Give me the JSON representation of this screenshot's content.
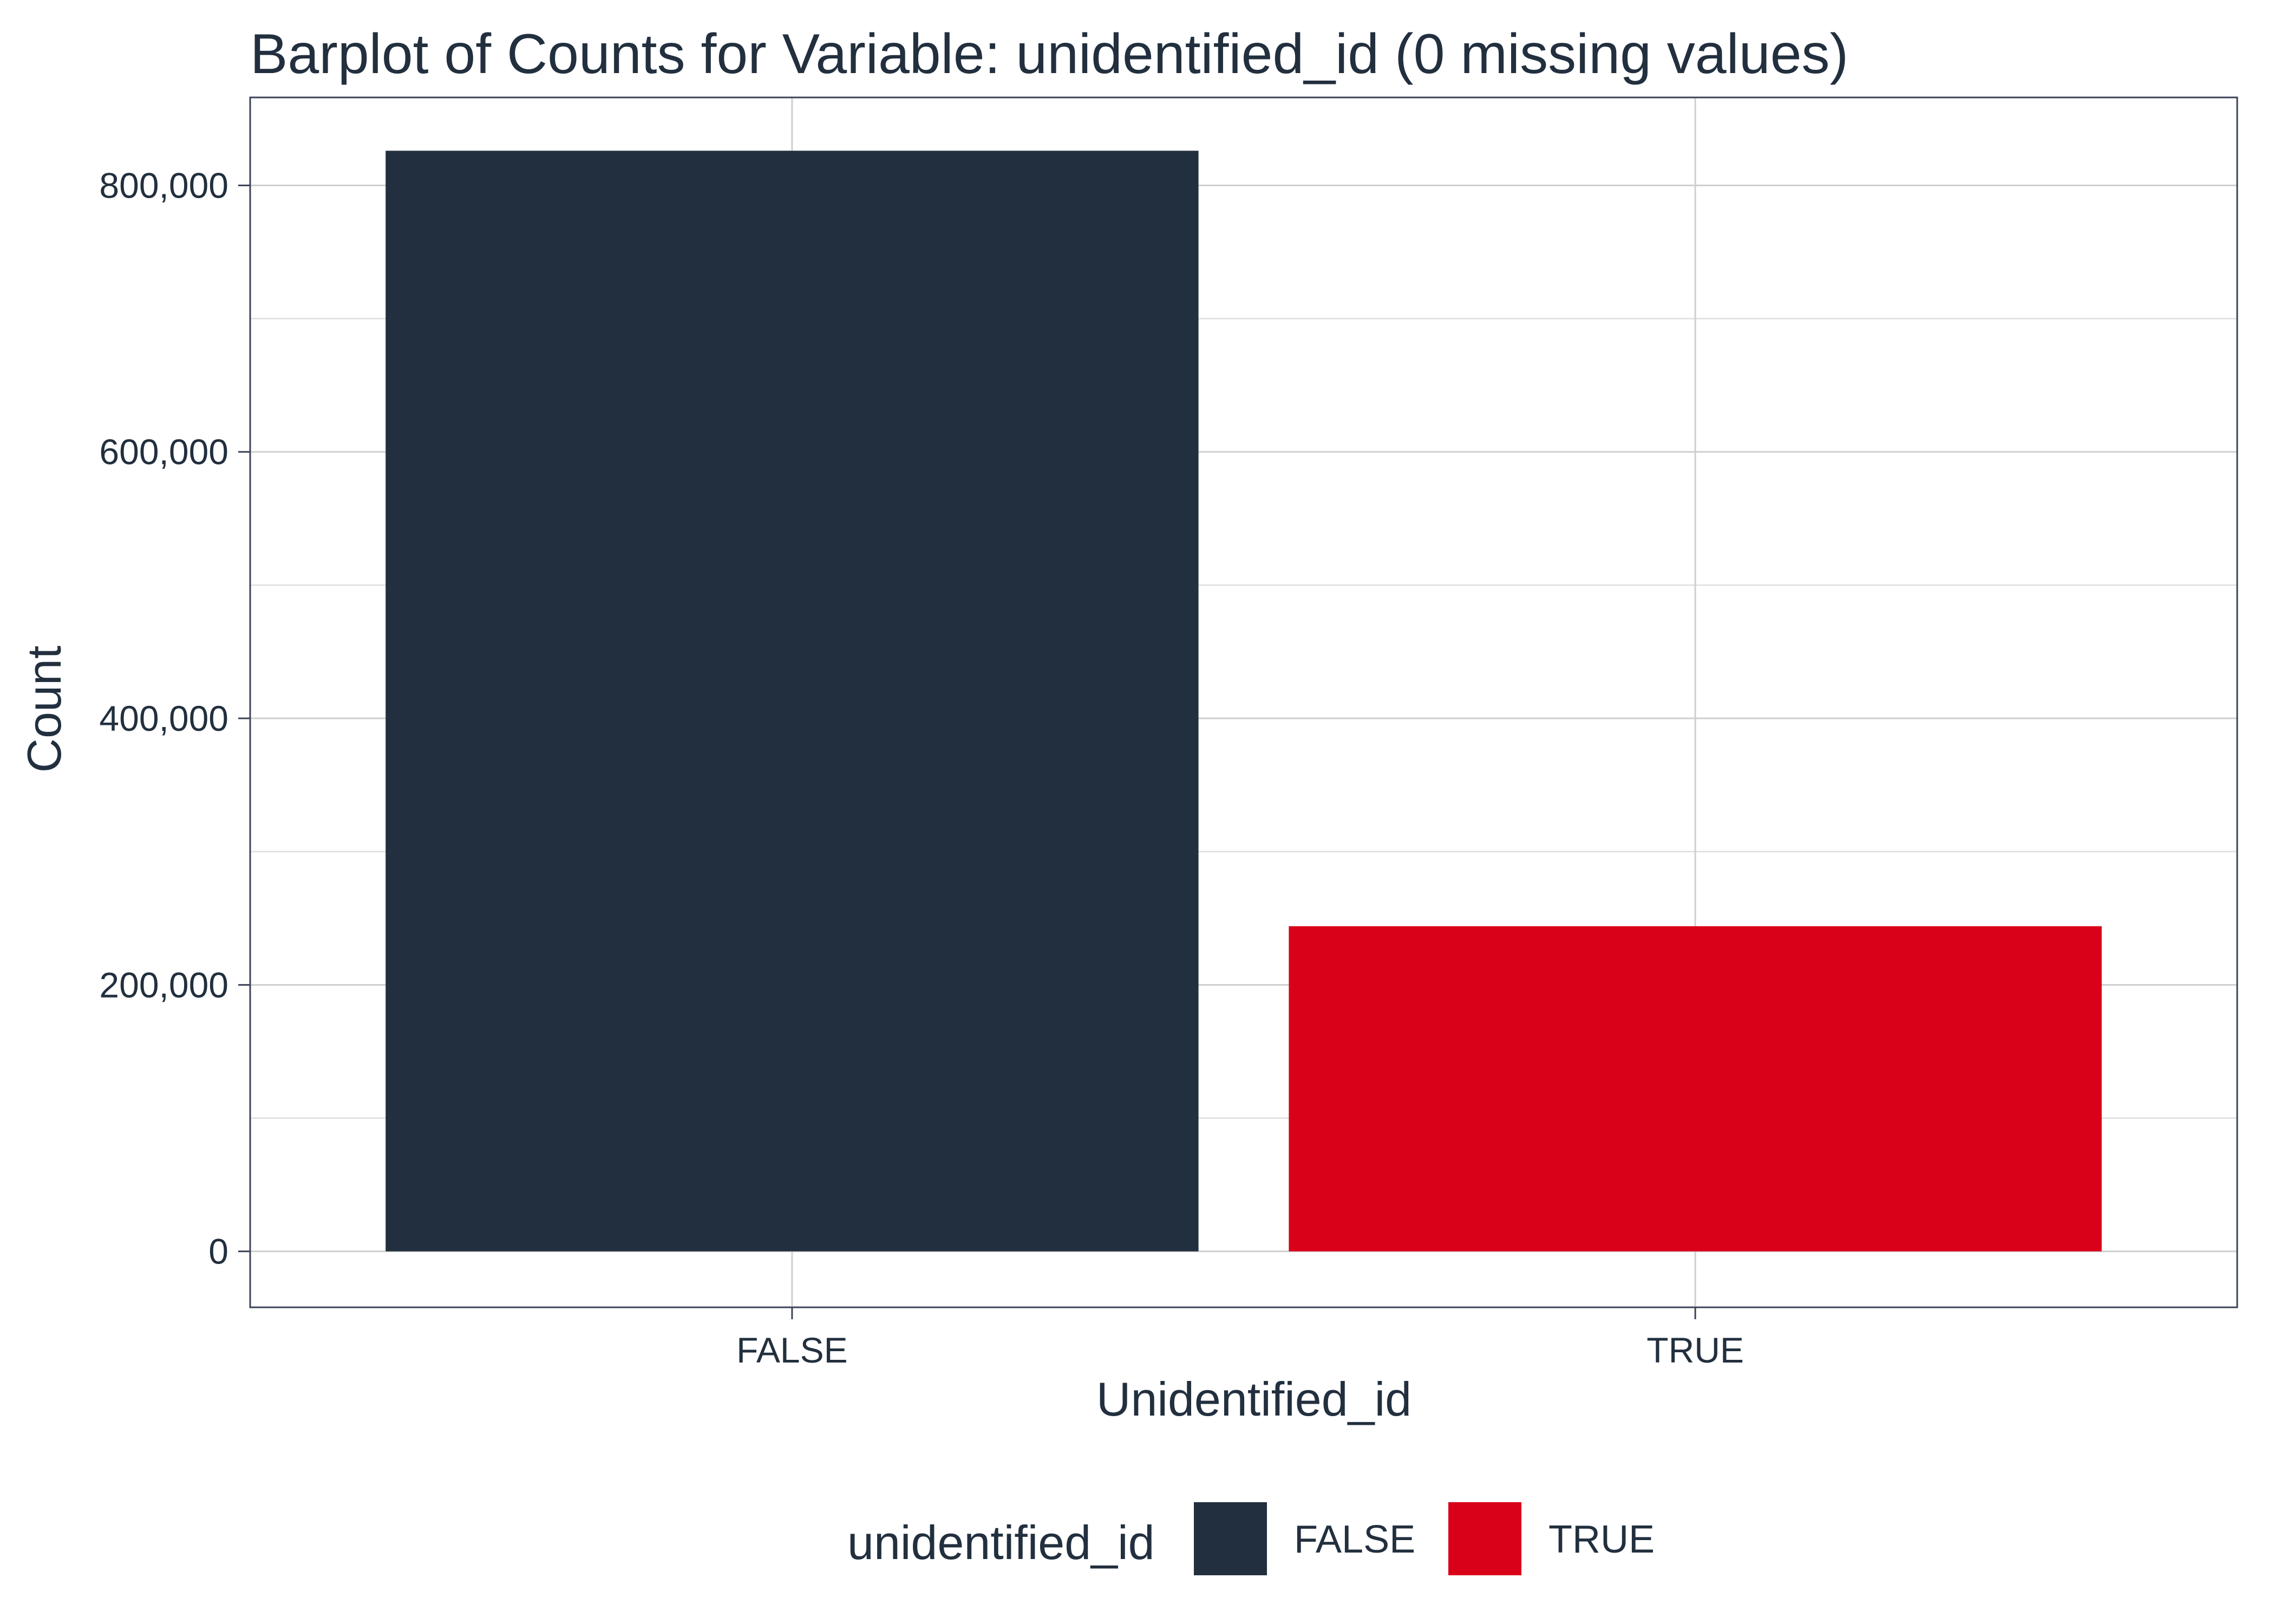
{
  "chart_data": {
    "type": "bar",
    "title": "Barplot of Counts for Variable: unidentified_id (0 missing values)",
    "xlabel": "Unidentified_id",
    "ylabel": "Count",
    "categories": [
      "FALSE",
      "TRUE"
    ],
    "values": [
      826000,
      244000
    ],
    "ylim": [
      -42000,
      866000
    ],
    "yticks": [
      0,
      200000,
      400000,
      600000,
      800000
    ],
    "ytick_labels": [
      "0",
      "200,000",
      "400,000",
      "600,000",
      "800,000"
    ],
    "grid": true,
    "legend": {
      "title": "unidentified_id",
      "position": "bottom",
      "items": [
        {
          "label": "FALSE",
          "color": "#222f3e"
        },
        {
          "label": "TRUE",
          "color": "#d90019"
        }
      ]
    }
  }
}
